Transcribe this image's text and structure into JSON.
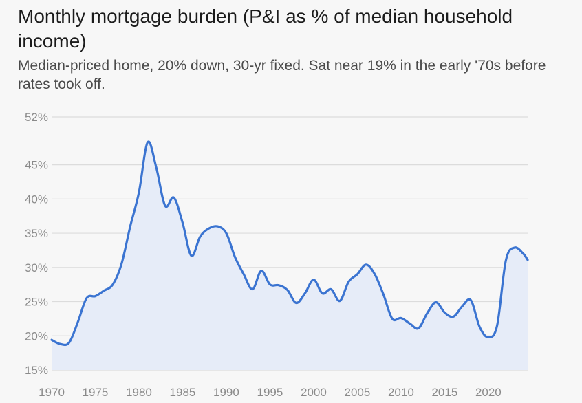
{
  "chart_data": {
    "type": "area",
    "title": "Monthly mortgage burden (P&I as % of median household income)",
    "subtitle": "Median-priced home, 20% down, 30-yr fixed. Sat near 19% in the early '70s before rates took off.",
    "xlabel": "",
    "ylabel": "",
    "xlim": [
      1970,
      2024.5
    ],
    "ylim": [
      15,
      52
    ],
    "y_ticks": [
      15,
      20,
      25,
      30,
      35,
      40,
      45,
      52
    ],
    "y_tick_labels": [
      "15%",
      "20%",
      "25%",
      "30%",
      "35%",
      "40%",
      "45%",
      "52%"
    ],
    "x_ticks": [
      1970,
      1975,
      1980,
      1985,
      1990,
      1995,
      2000,
      2005,
      2010,
      2015,
      2020
    ],
    "x_tick_labels": [
      "1970",
      "1975",
      "1980",
      "1985",
      "1990",
      "1995",
      "2000",
      "2005",
      "2010",
      "2015",
      "2020"
    ],
    "grid": true,
    "colors": {
      "line": "#3b74d1",
      "fill": "#e6ecf8",
      "grid": "#dcdcdc",
      "tick": "#8a8a8a"
    },
    "series": [
      {
        "x": [
          1970,
          1971,
          1972,
          1973,
          1974,
          1975,
          1976,
          1977,
          1978,
          1979,
          1980,
          1981,
          1982,
          1983,
          1984,
          1985,
          1986,
          1987,
          1988,
          1989,
          1990,
          1991,
          1992,
          1993,
          1994,
          1995,
          1996,
          1997,
          1998,
          1999,
          2000,
          2001,
          2002,
          2003,
          2004,
          2005,
          2006,
          2007,
          2008,
          2009,
          2010,
          2011,
          2012,
          2013,
          2014,
          2015,
          2016,
          2017,
          2018,
          2019,
          2020,
          2021,
          2022,
          2023,
          2024,
          2024.5
        ],
        "values": [
          19.4,
          18.8,
          19.0,
          22.0,
          25.5,
          25.8,
          26.6,
          27.5,
          30.5,
          36.0,
          41.0,
          48.3,
          44.5,
          39.0,
          40.2,
          36.5,
          31.7,
          34.5,
          35.7,
          36.0,
          35.0,
          31.5,
          29.0,
          26.8,
          29.5,
          27.5,
          27.4,
          26.7,
          24.8,
          26.2,
          28.2,
          26.2,
          26.8,
          25.1,
          27.9,
          29.0,
          30.4,
          29.0,
          26.0,
          22.5,
          22.6,
          21.8,
          21.1,
          23.3,
          24.9,
          23.4,
          22.8,
          24.3,
          25.2,
          21.3,
          19.8,
          21.5,
          31.0,
          32.9,
          32.0,
          31.1
        ]
      }
    ]
  }
}
